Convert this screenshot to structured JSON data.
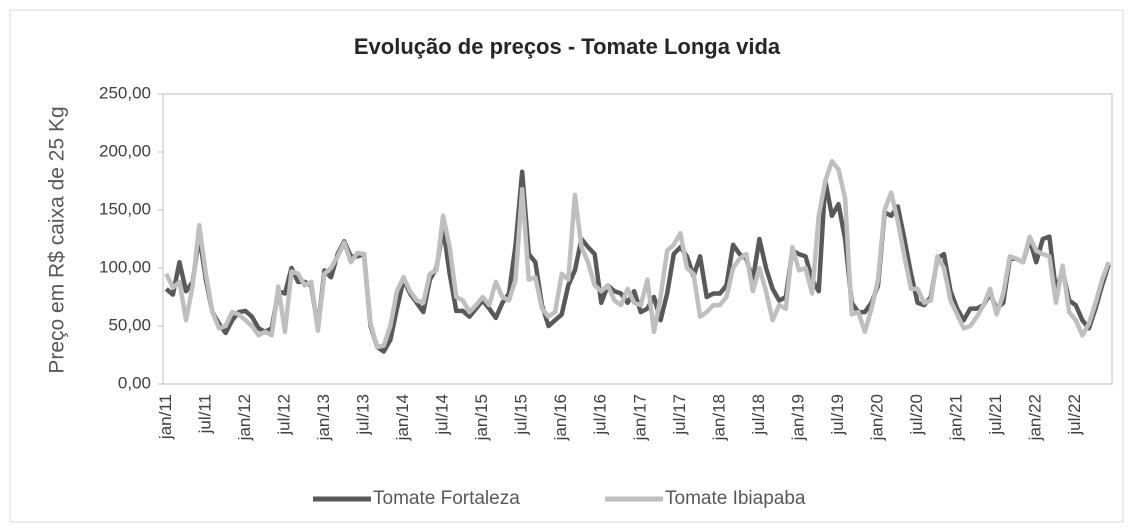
{
  "chart_data": {
    "type": "line",
    "title": "Evolução de preços - Tomate Longa vida",
    "y_label": "Preço em R$ caixa de 25 Kg",
    "categories": [
      "jan/11",
      null,
      null,
      null,
      null,
      null,
      "jul/11",
      null,
      null,
      null,
      null,
      null,
      "jan/12",
      null,
      null,
      null,
      null,
      null,
      "jul/12",
      null,
      null,
      null,
      null,
      null,
      "jan/13",
      null,
      null,
      null,
      null,
      null,
      "jul/13",
      null,
      null,
      null,
      null,
      null,
      "jan/14",
      null,
      null,
      null,
      null,
      null,
      "jul/14",
      null,
      null,
      null,
      null,
      null,
      "jan/15",
      null,
      null,
      null,
      null,
      null,
      "jul/15",
      null,
      null,
      null,
      null,
      null,
      "jan/16",
      null,
      null,
      null,
      null,
      null,
      "jul/16",
      null,
      null,
      null,
      null,
      null,
      "jan/17",
      null,
      null,
      null,
      null,
      null,
      "jul/17",
      null,
      null,
      null,
      null,
      null,
      "jan/18",
      null,
      null,
      null,
      null,
      null,
      "jul/18",
      null,
      null,
      null,
      null,
      null,
      "jan/19",
      null,
      null,
      null,
      null,
      null,
      "jul/19",
      null,
      null,
      null,
      null,
      null,
      "jan/20",
      null,
      null,
      null,
      null,
      null,
      "jul/20",
      null,
      null,
      null,
      null,
      null,
      "jan/21",
      null,
      null,
      null,
      null,
      null,
      "jul/21",
      null,
      null,
      null,
      null,
      null,
      "jan/22",
      null,
      null,
      null,
      null,
      null,
      "jul/22",
      null,
      null,
      null,
      null,
      null
    ],
    "series": [
      {
        "name": "Tomate Fortaleza",
        "color": "#595959",
        "values": [
          82,
          77,
          105,
          80,
          88,
          128,
          90,
          62,
          52,
          44,
          55,
          62,
          63,
          58,
          48,
          45,
          48,
          80,
          78,
          100,
          88,
          88,
          85,
          48,
          98,
          92,
          112,
          123,
          110,
          110,
          112,
          50,
          32,
          28,
          38,
          65,
          90,
          78,
          70,
          62,
          90,
          100,
          135,
          95,
          63,
          63,
          58,
          65,
          72,
          65,
          57,
          70,
          78,
          120,
          183,
          112,
          105,
          68,
          50,
          55,
          60,
          85,
          98,
          125,
          118,
          112,
          70,
          85,
          80,
          78,
          70,
          80,
          62,
          65,
          75,
          55,
          78,
          112,
          118,
          110,
          93,
          110,
          75,
          78,
          78,
          85,
          120,
          112,
          108,
          90,
          125,
          100,
          82,
          72,
          75,
          115,
          112,
          110,
          90,
          80,
          175,
          145,
          155,
          125,
          70,
          62,
          62,
          70,
          85,
          148,
          145,
          153,
          125,
          95,
          70,
          68,
          75,
          108,
          112,
          80,
          65,
          55,
          65,
          65,
          68,
          78,
          65,
          70,
          108,
          108,
          105,
          125,
          105,
          125,
          127,
          80,
          98,
          72,
          68,
          55,
          48,
          65,
          85,
          103
        ]
      },
      {
        "name": "Tomate Ibiapaba",
        "color": "#bfbfbf",
        "values": [
          95,
          83,
          88,
          55,
          85,
          137,
          95,
          62,
          48,
          50,
          62,
          60,
          55,
          50,
          42,
          45,
          42,
          84,
          45,
          97,
          95,
          85,
          88,
          46,
          95,
          100,
          110,
          122,
          105,
          113,
          112,
          52,
          32,
          33,
          50,
          80,
          92,
          80,
          72,
          70,
          95,
          98,
          145,
          118,
          75,
          72,
          62,
          68,
          75,
          68,
          88,
          75,
          72,
          90,
          168,
          90,
          92,
          65,
          58,
          62,
          95,
          90,
          163,
          118,
          105,
          85,
          80,
          85,
          72,
          68,
          82,
          70,
          68,
          90,
          45,
          75,
          115,
          120,
          130,
          100,
          95,
          58,
          62,
          68,
          68,
          75,
          100,
          108,
          112,
          80,
          100,
          80,
          55,
          68,
          65,
          118,
          98,
          100,
          78,
          145,
          175,
          192,
          185,
          160,
          60,
          62,
          45,
          65,
          90,
          150,
          165,
          140,
          110,
          82,
          82,
          70,
          72,
          110,
          100,
          72,
          60,
          48,
          50,
          58,
          68,
          82,
          60,
          78,
          110,
          108,
          105,
          127,
          115,
          112,
          110,
          70,
          102,
          62,
          55,
          42,
          52,
          70,
          90,
          105
        ]
      }
    ],
    "ylim": [
      0,
      250
    ],
    "yticks": [
      {
        "value": 0,
        "label": "0,00"
      },
      {
        "value": 50,
        "label": "50,00"
      },
      {
        "value": 100,
        "label": "100,00"
      },
      {
        "value": 150,
        "label": "150,00"
      },
      {
        "value": 200,
        "label": "200,00"
      },
      {
        "value": 250,
        "label": "250,00"
      }
    ],
    "legend": "bottom"
  }
}
